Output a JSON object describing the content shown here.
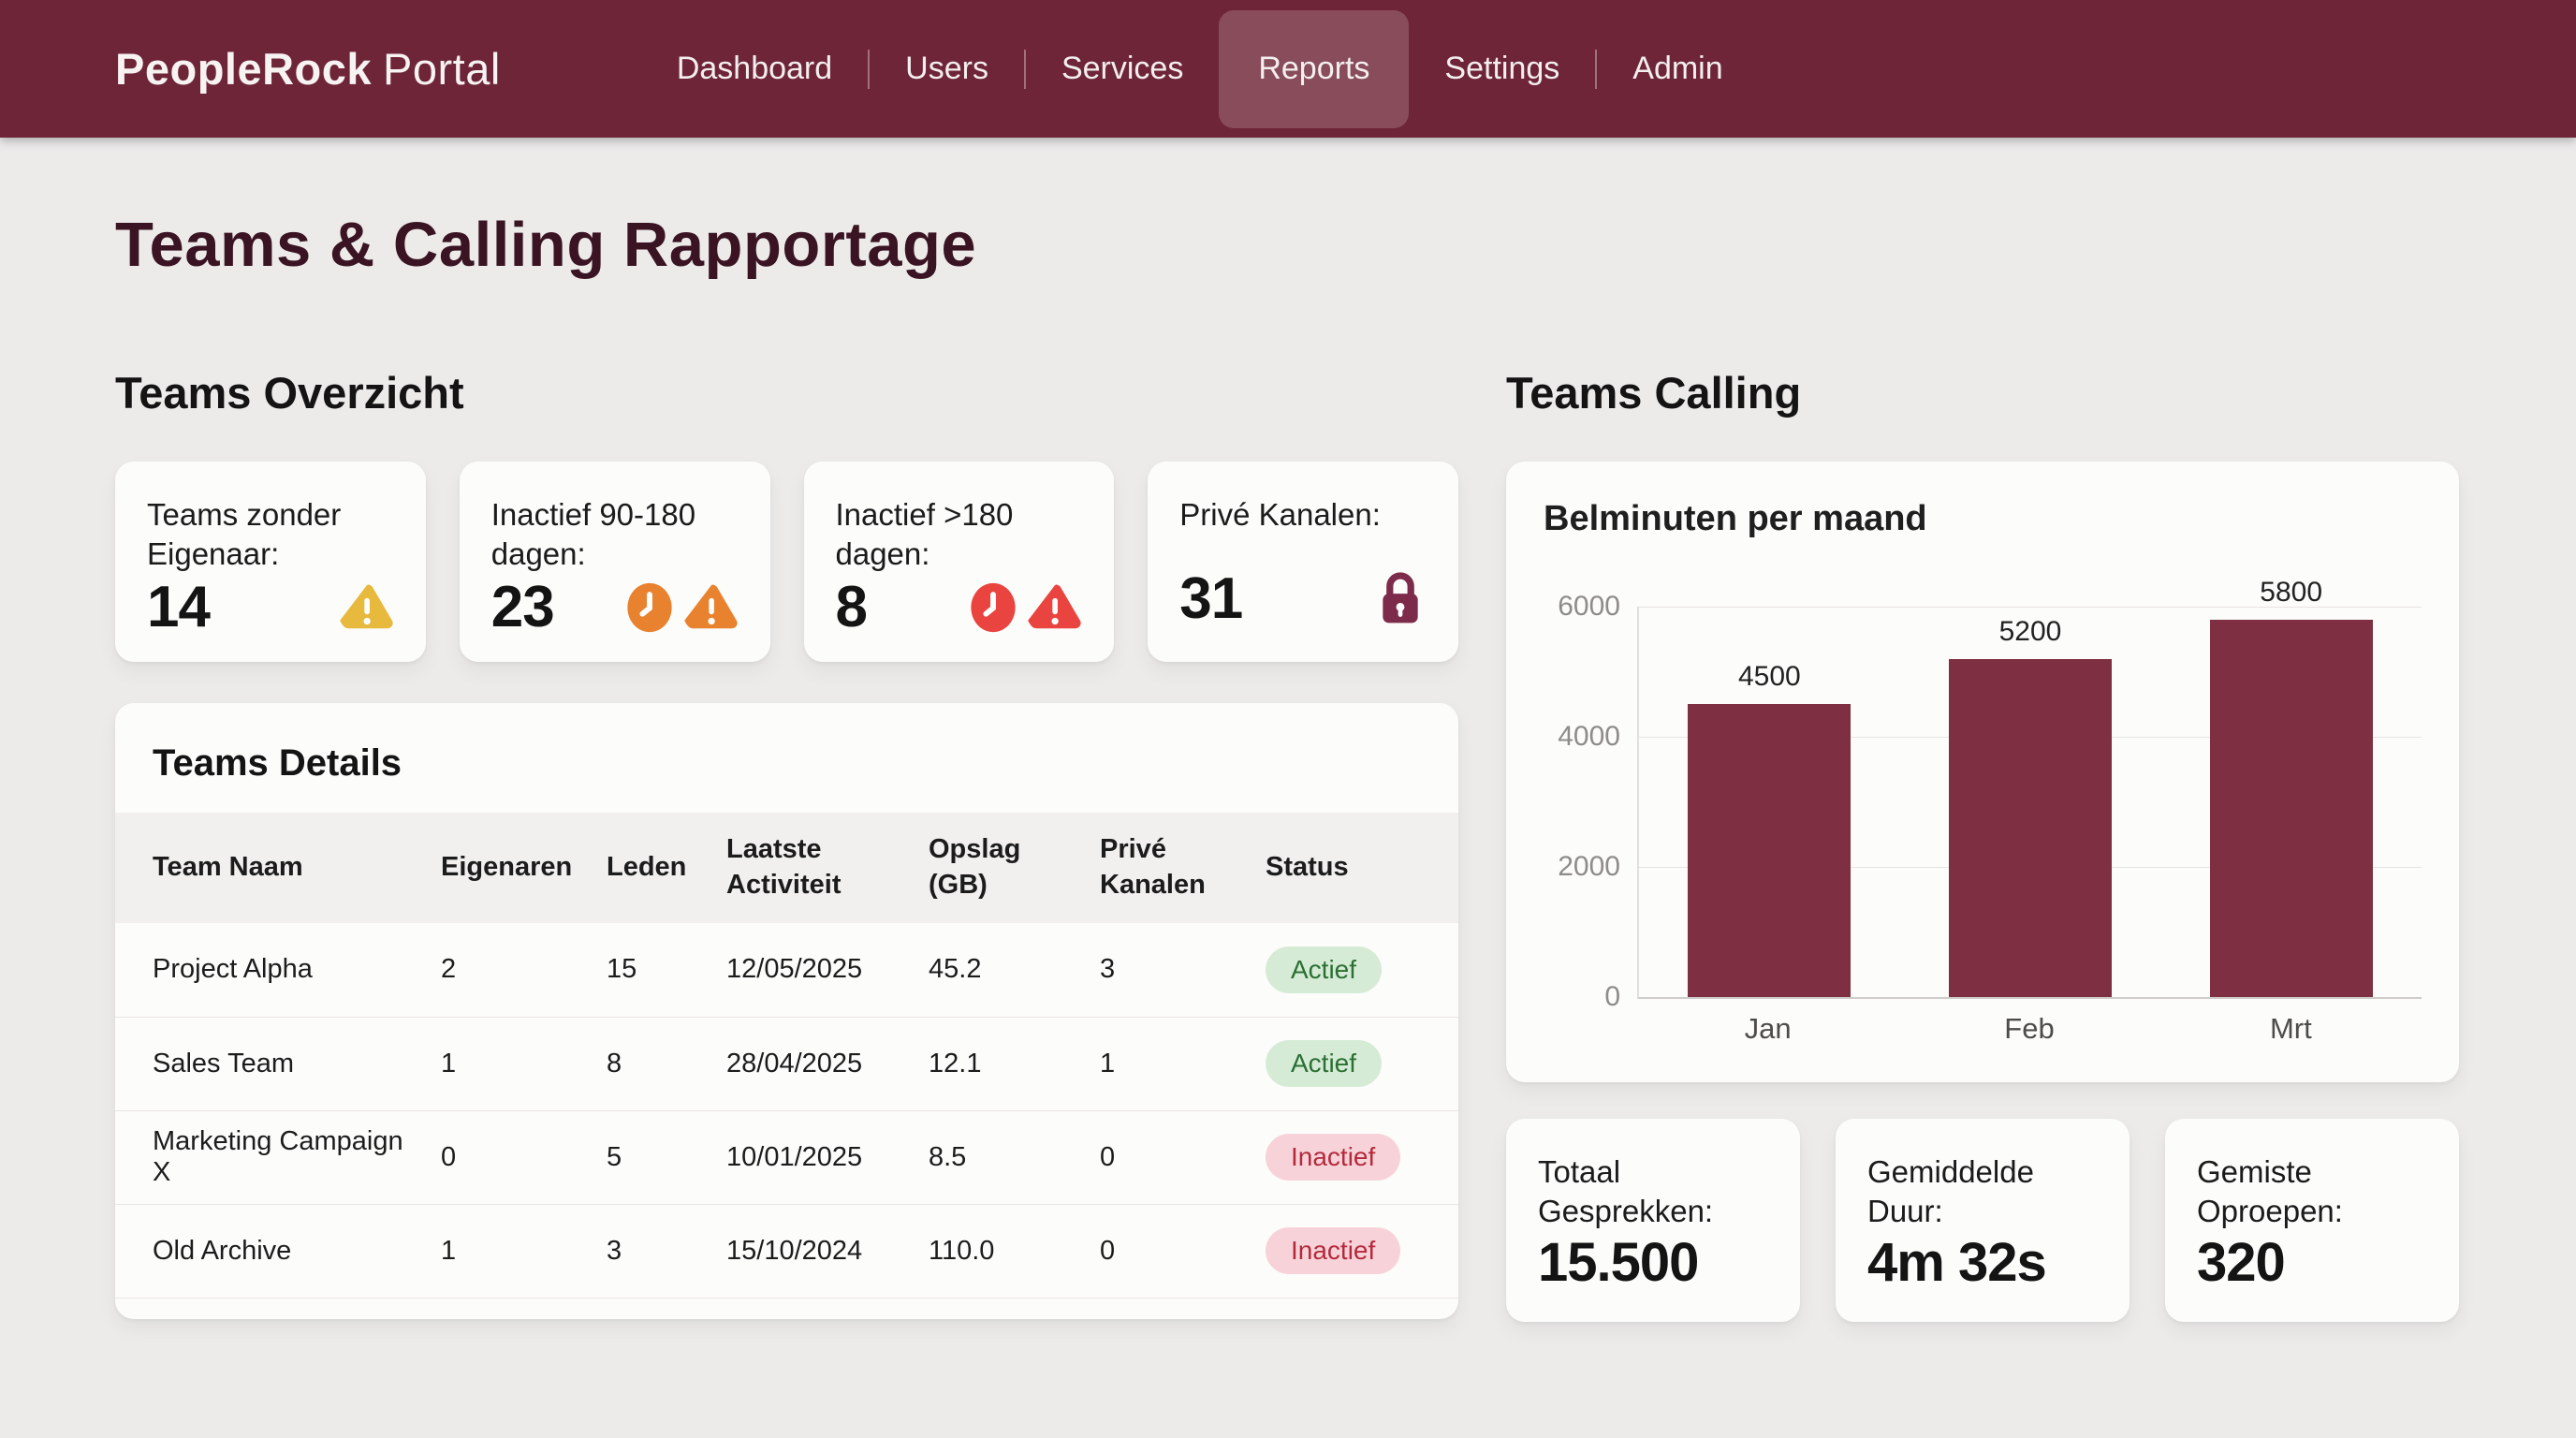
{
  "colors": {
    "nav_maroon": "#6E2538",
    "title_maroon": "#3B1423",
    "bar_maroon": "#7E2F41",
    "warning_yellow": "#E7B93C",
    "warning_orange": "#E8822F",
    "warning_red": "#EA4440",
    "lock_plum": "#7D2B4A",
    "badge_active_bg": "#D6EBD6",
    "badge_active_text": "#2B7033",
    "badge_inactive_bg": "#F7D3D9",
    "badge_inactive_text": "#B42A3C"
  },
  "nav": {
    "brand_bold": "PeopleRock",
    "brand_light": "Portal",
    "items": [
      {
        "label": "Dashboard",
        "active": false
      },
      {
        "label": "Users",
        "active": false
      },
      {
        "label": "Services",
        "active": false
      },
      {
        "label": "Reports",
        "active": true
      },
      {
        "label": "Settings",
        "active": false
      },
      {
        "label": "Admin",
        "active": false
      }
    ]
  },
  "page": {
    "title": "Teams & Calling Rapportage"
  },
  "teams_overview": {
    "heading": "Teams Overzicht",
    "stat_cards": [
      {
        "label": "Teams zonder Eigenaar:",
        "value": "14",
        "icons": [
          "warning-triangle-icon"
        ],
        "icon_color": "#E7B93C"
      },
      {
        "label": "Inactief 90-180 dagen:",
        "value": "23",
        "icons": [
          "clock-icon",
          "warning-triangle-icon"
        ],
        "icon_color": "#E8822F"
      },
      {
        "label": "Inactief >180 dagen:",
        "value": "8",
        "icons": [
          "clock-icon",
          "warning-triangle-icon"
        ],
        "icon_color": "#EA4440"
      },
      {
        "label": "Privé Kanalen:",
        "value": "31",
        "icons": [
          "lock-icon"
        ],
        "icon_color": "#7D2B4A"
      }
    ],
    "details": {
      "title": "Teams Details",
      "columns": [
        "Team Naam",
        "Eigenaren",
        "Leden",
        "Laatste Activiteit",
        "Opslag (GB)",
        "Privé Kanalen",
        "Status"
      ],
      "rows": [
        {
          "team": "Project Alpha",
          "eigenaren": "2",
          "leden": "15",
          "laatste_activiteit": "12/05/2025",
          "opslag_gb": "45.2",
          "prive_kanalen": "3",
          "status": "Actief",
          "status_type": "active"
        },
        {
          "team": "Sales Team",
          "eigenaren": "1",
          "leden": "8",
          "laatste_activiteit": "28/04/2025",
          "opslag_gb": "12.1",
          "prive_kanalen": "1",
          "status": "Actief",
          "status_type": "active"
        },
        {
          "team": "Marketing Campaign X",
          "eigenaren": "0",
          "leden": "5",
          "laatste_activiteit": "10/01/2025",
          "opslag_gb": "8.5",
          "prive_kanalen": "0",
          "status": "Inactief",
          "status_type": "inactive"
        },
        {
          "team": "Old Archive",
          "eigenaren": "1",
          "leden": "3",
          "laatste_activiteit": "15/10/2024",
          "opslag_gb": "110.0",
          "prive_kanalen": "0",
          "status": "Inactief",
          "status_type": "inactive"
        }
      ]
    }
  },
  "teams_calling": {
    "heading": "Teams Calling",
    "summary_cards": [
      {
        "label": "Totaal Gesprekken:",
        "value": "15.500"
      },
      {
        "label": "Gemiddelde Duur:",
        "value": "4m 32s"
      },
      {
        "label": "Gemiste Oproepen:",
        "value": "320"
      }
    ]
  },
  "chart_data": {
    "type": "bar",
    "title": "Belminuten per maand",
    "categories": [
      "Jan",
      "Feb",
      "Mrt"
    ],
    "values": [
      4500,
      5200,
      5800
    ],
    "ylim": [
      0,
      6000
    ],
    "yticks": [
      0,
      2000,
      4000,
      6000
    ],
    "bar_color": "#7E2F41",
    "grid": true,
    "legend": false
  }
}
